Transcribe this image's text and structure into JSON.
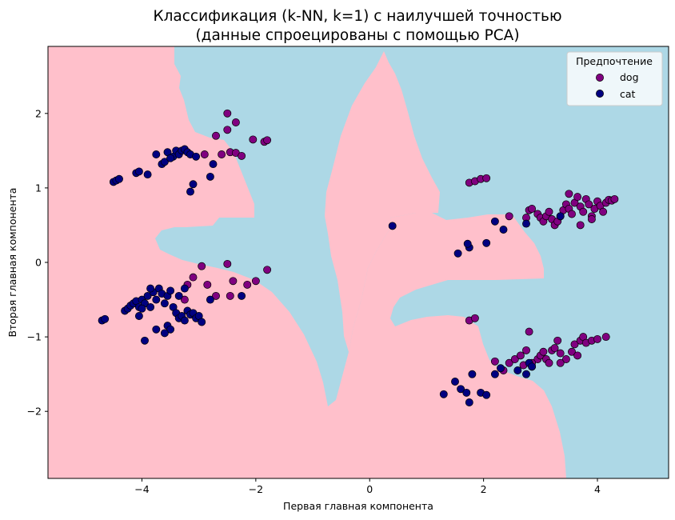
{
  "chart_data": {
    "type": "scatter",
    "title_line1": "Классификация (k-NN, k=1) с наилучшей точностью",
    "title_line2": "(данные спроецированы с помощью PCA)",
    "xlabel": "Первая главная компонента",
    "ylabel": "Вторая главная компонента",
    "xlim": [
      -5.65,
      5.25
    ],
    "ylim": [
      -2.9,
      2.9
    ],
    "xticks": [
      -4,
      -2,
      0,
      2,
      4
    ],
    "yticks": [
      -2,
      -1,
      0,
      1,
      2
    ],
    "xtick_labels": [
      "−4",
      "−2",
      "0",
      "2",
      "4"
    ],
    "ytick_labels": [
      "−2",
      "−1",
      "0",
      "1",
      "2"
    ],
    "background_colors": {
      "dog_region": "#ffc0cb",
      "cat_region": "#add8e6"
    },
    "legend": {
      "title": "Предпочтение",
      "placement": "top-right",
      "entries": [
        {
          "label": "dog",
          "color": "#800080"
        },
        {
          "label": "cat",
          "color": "#000080"
        }
      ]
    },
    "series": [
      {
        "name": "dog",
        "color": "#800080",
        "points": [
          [
            -2.5,
            2.0
          ],
          [
            -2.7,
            1.7
          ],
          [
            -2.5,
            1.78
          ],
          [
            -2.35,
            1.88
          ],
          [
            -2.05,
            1.65
          ],
          [
            -1.85,
            1.62
          ],
          [
            -1.8,
            1.64
          ],
          [
            -2.6,
            1.45
          ],
          [
            -2.45,
            1.48
          ],
          [
            -2.35,
            1.47
          ],
          [
            -2.25,
            1.43
          ],
          [
            -2.9,
            1.45
          ],
          [
            -3.2,
            -0.3
          ],
          [
            -3.1,
            -0.2
          ],
          [
            -2.95,
            -0.05
          ],
          [
            -2.85,
            -0.3
          ],
          [
            -2.7,
            -0.45
          ],
          [
            -2.5,
            -0.02
          ],
          [
            -2.4,
            -0.25
          ],
          [
            -2.15,
            -0.3
          ],
          [
            -2.0,
            -0.25
          ],
          [
            -1.8,
            -0.1
          ],
          [
            -2.45,
            -0.45
          ],
          [
            -3.25,
            -0.5
          ],
          [
            1.75,
            1.07
          ],
          [
            1.85,
            1.09
          ],
          [
            1.95,
            1.12
          ],
          [
            2.05,
            1.13
          ],
          [
            1.75,
            -0.78
          ],
          [
            1.85,
            -0.75
          ],
          [
            2.45,
            0.62
          ],
          [
            2.75,
            0.6
          ],
          [
            2.8,
            0.7
          ],
          [
            2.85,
            0.72
          ],
          [
            2.95,
            0.65
          ],
          [
            3.0,
            0.6
          ],
          [
            3.05,
            0.55
          ],
          [
            3.1,
            0.62
          ],
          [
            3.15,
            0.68
          ],
          [
            3.2,
            0.58
          ],
          [
            3.25,
            0.5
          ],
          [
            3.3,
            0.55
          ],
          [
            3.35,
            0.62
          ],
          [
            3.4,
            0.7
          ],
          [
            3.45,
            0.78
          ],
          [
            3.5,
            0.72
          ],
          [
            3.55,
            0.65
          ],
          [
            3.6,
            0.8
          ],
          [
            3.65,
            0.88
          ],
          [
            3.7,
            0.75
          ],
          [
            3.75,
            0.68
          ],
          [
            3.8,
            0.85
          ],
          [
            3.85,
            0.78
          ],
          [
            3.9,
            0.62
          ],
          [
            3.95,
            0.72
          ],
          [
            4.0,
            0.82
          ],
          [
            4.05,
            0.76
          ],
          [
            4.1,
            0.68
          ],
          [
            4.15,
            0.8
          ],
          [
            4.2,
            0.84
          ],
          [
            4.25,
            0.83
          ],
          [
            4.3,
            0.85
          ],
          [
            3.5,
            0.92
          ],
          [
            3.7,
            0.5
          ],
          [
            3.9,
            0.58
          ],
          [
            2.8,
            -0.93
          ],
          [
            2.35,
            -1.45
          ],
          [
            2.45,
            -1.35
          ],
          [
            2.55,
            -1.3
          ],
          [
            2.65,
            -1.25
          ],
          [
            2.75,
            -1.18
          ],
          [
            2.85,
            -1.4
          ],
          [
            2.95,
            -1.3
          ],
          [
            3.0,
            -1.25
          ],
          [
            3.05,
            -1.2
          ],
          [
            3.1,
            -1.3
          ],
          [
            3.15,
            -1.35
          ],
          [
            3.2,
            -1.18
          ],
          [
            3.25,
            -1.15
          ],
          [
            3.3,
            -1.05
          ],
          [
            3.35,
            -1.22
          ],
          [
            3.45,
            -1.3
          ],
          [
            3.55,
            -1.2
          ],
          [
            3.6,
            -1.1
          ],
          [
            3.7,
            -1.05
          ],
          [
            3.75,
            -1.0
          ],
          [
            3.8,
            -1.08
          ],
          [
            3.9,
            -1.05
          ],
          [
            4.0,
            -1.03
          ],
          [
            4.15,
            -1.0
          ],
          [
            3.35,
            -1.35
          ],
          [
            3.65,
            -1.25
          ],
          [
            2.2,
            -1.33
          ],
          [
            2.7,
            -1.38
          ],
          [
            2.85,
            -1.35
          ]
        ]
      },
      {
        "name": "cat",
        "color": "#000080",
        "points": [
          [
            -4.5,
            1.08
          ],
          [
            -4.45,
            1.1
          ],
          [
            -4.4,
            1.12
          ],
          [
            -4.1,
            1.2
          ],
          [
            -4.05,
            1.22
          ],
          [
            -3.9,
            1.18
          ],
          [
            -3.65,
            1.32
          ],
          [
            -3.6,
            1.35
          ],
          [
            -3.75,
            1.45
          ],
          [
            -3.55,
            1.48
          ],
          [
            -3.45,
            1.42
          ],
          [
            -3.4,
            1.5
          ],
          [
            -3.35,
            1.45
          ],
          [
            -3.3,
            1.5
          ],
          [
            -3.25,
            1.52
          ],
          [
            -3.2,
            1.48
          ],
          [
            -3.15,
            1.45
          ],
          [
            -3.05,
            1.42
          ],
          [
            -3.5,
            1.4
          ],
          [
            -3.1,
            1.05
          ],
          [
            -3.15,
            0.95
          ],
          [
            -2.8,
            1.15
          ],
          [
            -2.75,
            1.32
          ],
          [
            -4.7,
            -0.78
          ],
          [
            -4.65,
            -0.76
          ],
          [
            -4.3,
            -0.65
          ],
          [
            -4.25,
            -0.62
          ],
          [
            -4.2,
            -0.58
          ],
          [
            -4.15,
            -0.55
          ],
          [
            -4.1,
            -0.52
          ],
          [
            -4.05,
            -0.6
          ],
          [
            -4.0,
            -0.5
          ],
          [
            -3.95,
            -0.55
          ],
          [
            -3.9,
            -0.45
          ],
          [
            -3.85,
            -0.6
          ],
          [
            -3.8,
            -0.4
          ],
          [
            -3.75,
            -0.5
          ],
          [
            -3.7,
            -0.35
          ],
          [
            -3.65,
            -0.42
          ],
          [
            -3.6,
            -0.55
          ],
          [
            -3.55,
            -0.45
          ],
          [
            -3.5,
            -0.38
          ],
          [
            -3.45,
            -0.6
          ],
          [
            -3.4,
            -0.68
          ],
          [
            -3.35,
            -0.75
          ],
          [
            -3.3,
            -0.72
          ],
          [
            -3.25,
            -0.78
          ],
          [
            -3.2,
            -0.65
          ],
          [
            -3.15,
            -0.7
          ],
          [
            -3.1,
            -0.68
          ],
          [
            -3.05,
            -0.75
          ],
          [
            -3.0,
            -0.72
          ],
          [
            -2.95,
            -0.8
          ],
          [
            -3.55,
            -0.85
          ],
          [
            -3.5,
            -0.9
          ],
          [
            -3.6,
            -0.95
          ],
          [
            -3.75,
            -0.9
          ],
          [
            -3.95,
            -1.05
          ],
          [
            -4.05,
            -0.72
          ],
          [
            -3.35,
            -0.45
          ],
          [
            -3.25,
            -0.35
          ],
          [
            -2.8,
            -0.5
          ],
          [
            -2.25,
            -0.45
          ],
          [
            -3.85,
            -0.35
          ],
          [
            -4.0,
            -0.62
          ],
          [
            0.4,
            0.49
          ],
          [
            1.55,
            0.12
          ],
          [
            1.75,
            0.2
          ],
          [
            1.72,
            0.25
          ],
          [
            2.05,
            0.26
          ],
          [
            2.2,
            0.55
          ],
          [
            2.35,
            0.44
          ],
          [
            2.75,
            0.52
          ],
          [
            3.35,
            0.62
          ],
          [
            1.3,
            -1.77
          ],
          [
            1.5,
            -1.6
          ],
          [
            1.6,
            -1.7
          ],
          [
            1.7,
            -1.75
          ],
          [
            1.75,
            -1.88
          ],
          [
            1.8,
            -1.5
          ],
          [
            1.95,
            -1.75
          ],
          [
            2.05,
            -1.78
          ],
          [
            2.2,
            -1.5
          ],
          [
            2.3,
            -1.42
          ],
          [
            2.8,
            -1.35
          ],
          [
            2.85,
            -1.4
          ],
          [
            2.75,
            -1.5
          ],
          [
            2.6,
            -1.45
          ]
        ]
      }
    ]
  }
}
